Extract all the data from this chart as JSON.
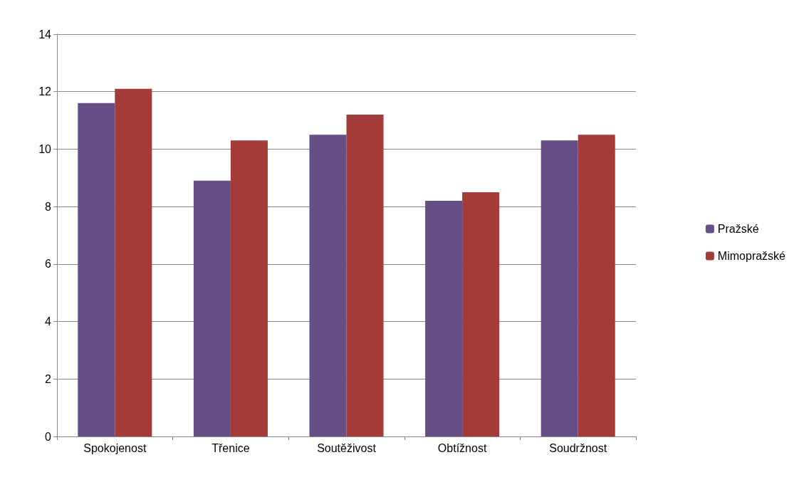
{
  "chart_data": {
    "type": "bar",
    "categories": [
      "Spokojenost",
      "Třenice",
      "Soutěživost",
      "Obtížnost",
      "Soudržnost"
    ],
    "series": [
      {
        "name": "Pražské",
        "color": "#654f86",
        "values": [
          11.6,
          8.9,
          10.5,
          8.2,
          10.3
        ]
      },
      {
        "name": "Mimopražské",
        "color": "#a33b39",
        "values": [
          12.1,
          10.3,
          11.2,
          8.5,
          10.5
        ]
      }
    ],
    "ylim": [
      0,
      14
    ],
    "yticks": [
      0,
      2,
      4,
      6,
      8,
      10,
      12,
      14
    ],
    "grid": "y",
    "legend": "right"
  }
}
